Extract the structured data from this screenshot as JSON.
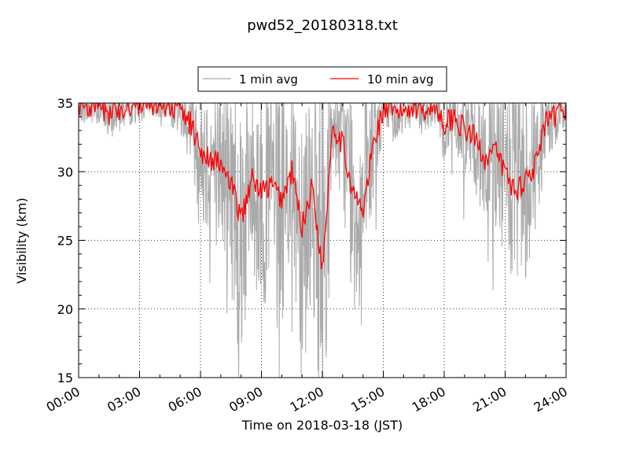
{
  "chart_data": {
    "type": "line",
    "title": "pwd52_20180318.txt",
    "xlabel": "Time on 2018-03-18 (JST)",
    "ylabel": "Visibility (km)",
    "xlim": [
      "00:00",
      "24:00"
    ],
    "ylim": [
      15,
      35
    ],
    "x_ticks": [
      "00:00",
      "03:00",
      "06:00",
      "09:00",
      "12:00",
      "15:00",
      "18:00",
      "21:00",
      "24:00"
    ],
    "y_ticks": [
      "15",
      "20",
      "25",
      "30",
      "35"
    ],
    "grid": true,
    "legend_position": "top-center, above axes",
    "series": [
      {
        "name": "1 min avg",
        "color": "#aaaaaa",
        "x": [
          "00:00",
          "00:30",
          "01:00",
          "01:30",
          "02:00",
          "02:30",
          "03:00",
          "03:30",
          "04:00",
          "04:30",
          "05:00",
          "05:30",
          "06:00",
          "06:30",
          "07:00",
          "07:30",
          "08:00",
          "08:30",
          "09:00",
          "09:30",
          "10:00",
          "10:30",
          "11:00",
          "11:30",
          "12:00",
          "12:30",
          "13:00",
          "13:30",
          "14:00",
          "14:30",
          "15:00",
          "15:30",
          "16:00",
          "16:30",
          "17:00",
          "17:30",
          "18:00",
          "18:30",
          "19:00",
          "19:30",
          "20:00",
          "20:30",
          "21:00",
          "21:30",
          "22:00",
          "22:30",
          "23:00",
          "23:30",
          "24:00"
        ],
        "values": [
          34.5,
          33.0,
          34.0,
          32.5,
          31.5,
          34.0,
          32.5,
          34.5,
          33.5,
          33.0,
          34.0,
          33.5,
          31.0,
          29.5,
          26.5,
          27.0,
          23.0,
          27.5,
          26.0,
          27.0,
          22.0,
          24.5,
          21.0,
          24.0,
          16.5,
          27.0,
          23.5,
          23.0,
          21.5,
          27.5,
          33.5,
          33.0,
          33.0,
          34.5,
          33.0,
          33.5,
          33.0,
          32.5,
          31.0,
          31.0,
          30.0,
          28.0,
          26.5,
          26.5,
          30.5,
          31.5,
          33.0,
          34.0,
          34.0
        ]
      },
      {
        "name": "10 min avg",
        "color": "#ff0000",
        "x": [
          "00:00",
          "00:30",
          "01:00",
          "01:30",
          "02:00",
          "02:30",
          "03:00",
          "03:30",
          "04:00",
          "04:30",
          "05:00",
          "05:30",
          "06:00",
          "06:30",
          "07:00",
          "07:30",
          "08:00",
          "08:30",
          "09:00",
          "09:30",
          "10:00",
          "10:30",
          "11:00",
          "11:30",
          "12:00",
          "12:30",
          "13:00",
          "13:30",
          "14:00",
          "14:30",
          "15:00",
          "15:30",
          "16:00",
          "16:30",
          "17:00",
          "17:30",
          "18:00",
          "18:30",
          "19:00",
          "19:30",
          "20:00",
          "20:30",
          "21:00",
          "21:30",
          "22:00",
          "22:30",
          "23:00",
          "23:30",
          "24:00"
        ],
        "values": [
          35.0,
          34.7,
          34.8,
          34.2,
          34.6,
          34.8,
          34.9,
          35.0,
          35.0,
          34.8,
          34.5,
          33.5,
          31.5,
          31.0,
          30.5,
          29.0,
          26.5,
          29.5,
          28.5,
          29.0,
          28.0,
          30.0,
          26.0,
          29.0,
          22.8,
          33.5,
          32.0,
          28.5,
          27.0,
          32.0,
          34.5,
          34.3,
          34.5,
          34.8,
          34.6,
          34.8,
          33.5,
          34.0,
          33.0,
          32.5,
          31.0,
          31.5,
          30.0,
          28.5,
          29.5,
          30.5,
          33.5,
          34.0,
          34.8
        ]
      }
    ]
  }
}
